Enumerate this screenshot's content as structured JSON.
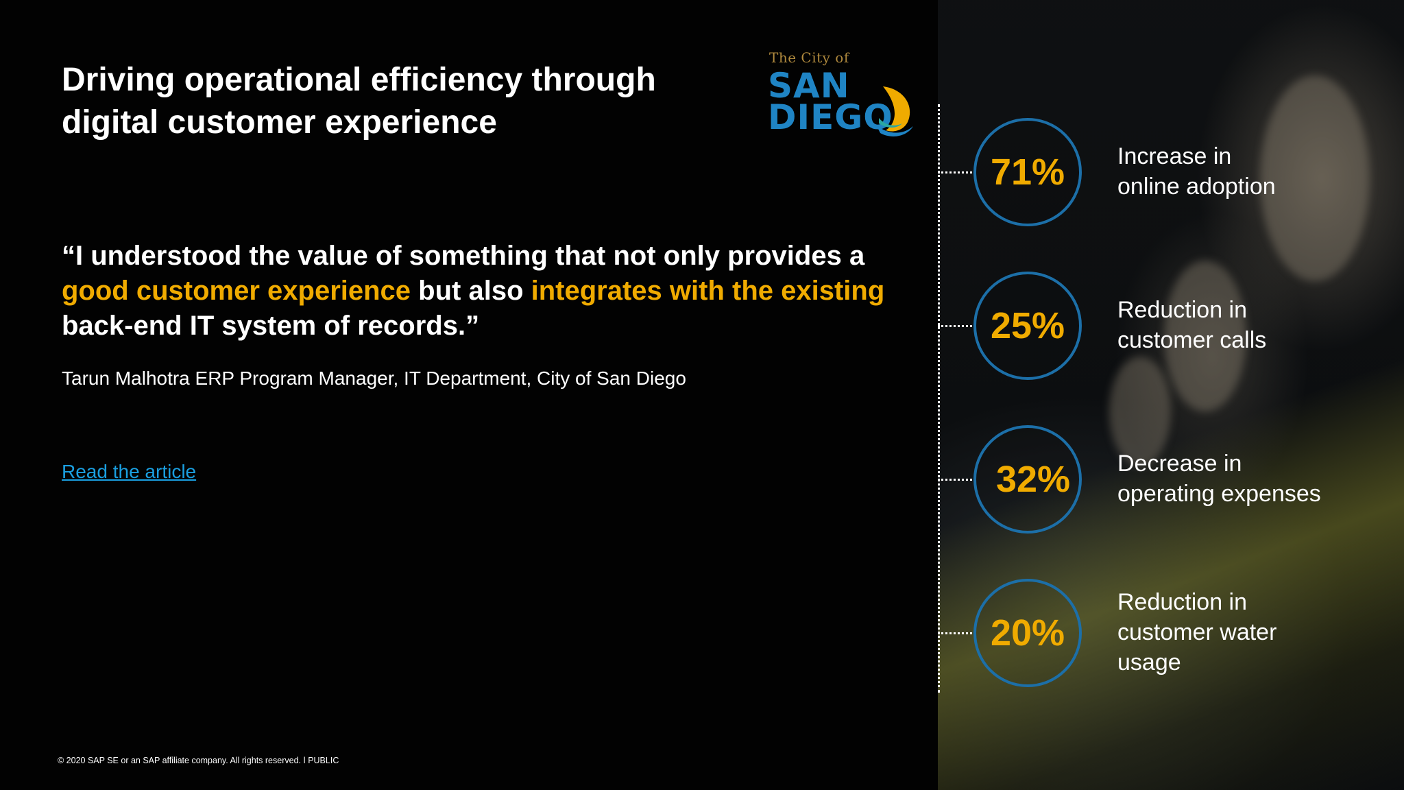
{
  "title": "Driving operational efficiency through digital customer experience",
  "logo": {
    "line1": "The City of",
    "line2": "SAN",
    "line3": "DIEGO",
    "colors": {
      "text": "#1f84c4",
      "accent": "#f0ab00",
      "script": "#b08a3e"
    }
  },
  "quote": {
    "part1": "“I understood the value of something that not only provides a ",
    "highlight1": "good customer experience",
    "part2": " but also ",
    "highlight2": "integrates with the existing",
    "part3": " back-end IT system of records.”"
  },
  "attribution": "Tarun Malhotra ERP Program Manager, IT Department, City of San Diego",
  "link_label": "Read the article",
  "footer": "© 2020 SAP SE or an SAP affiliate company. All rights reserved.  ǀ  PUBLIC",
  "stats": [
    {
      "value": "71%",
      "label": "Increase in\nonline adoption"
    },
    {
      "value": "25%",
      "label": "Reduction in\ncustomer calls"
    },
    {
      "value": "32%",
      "label": "Decrease in\noperating expenses"
    },
    {
      "value": "20%",
      "label": "Reduction in\ncustomer water\nusage"
    }
  ],
  "colors": {
    "background": "#020202",
    "highlight": "#f0ab00",
    "link": "#1a9fe0",
    "circle": "#1c6fa8"
  }
}
